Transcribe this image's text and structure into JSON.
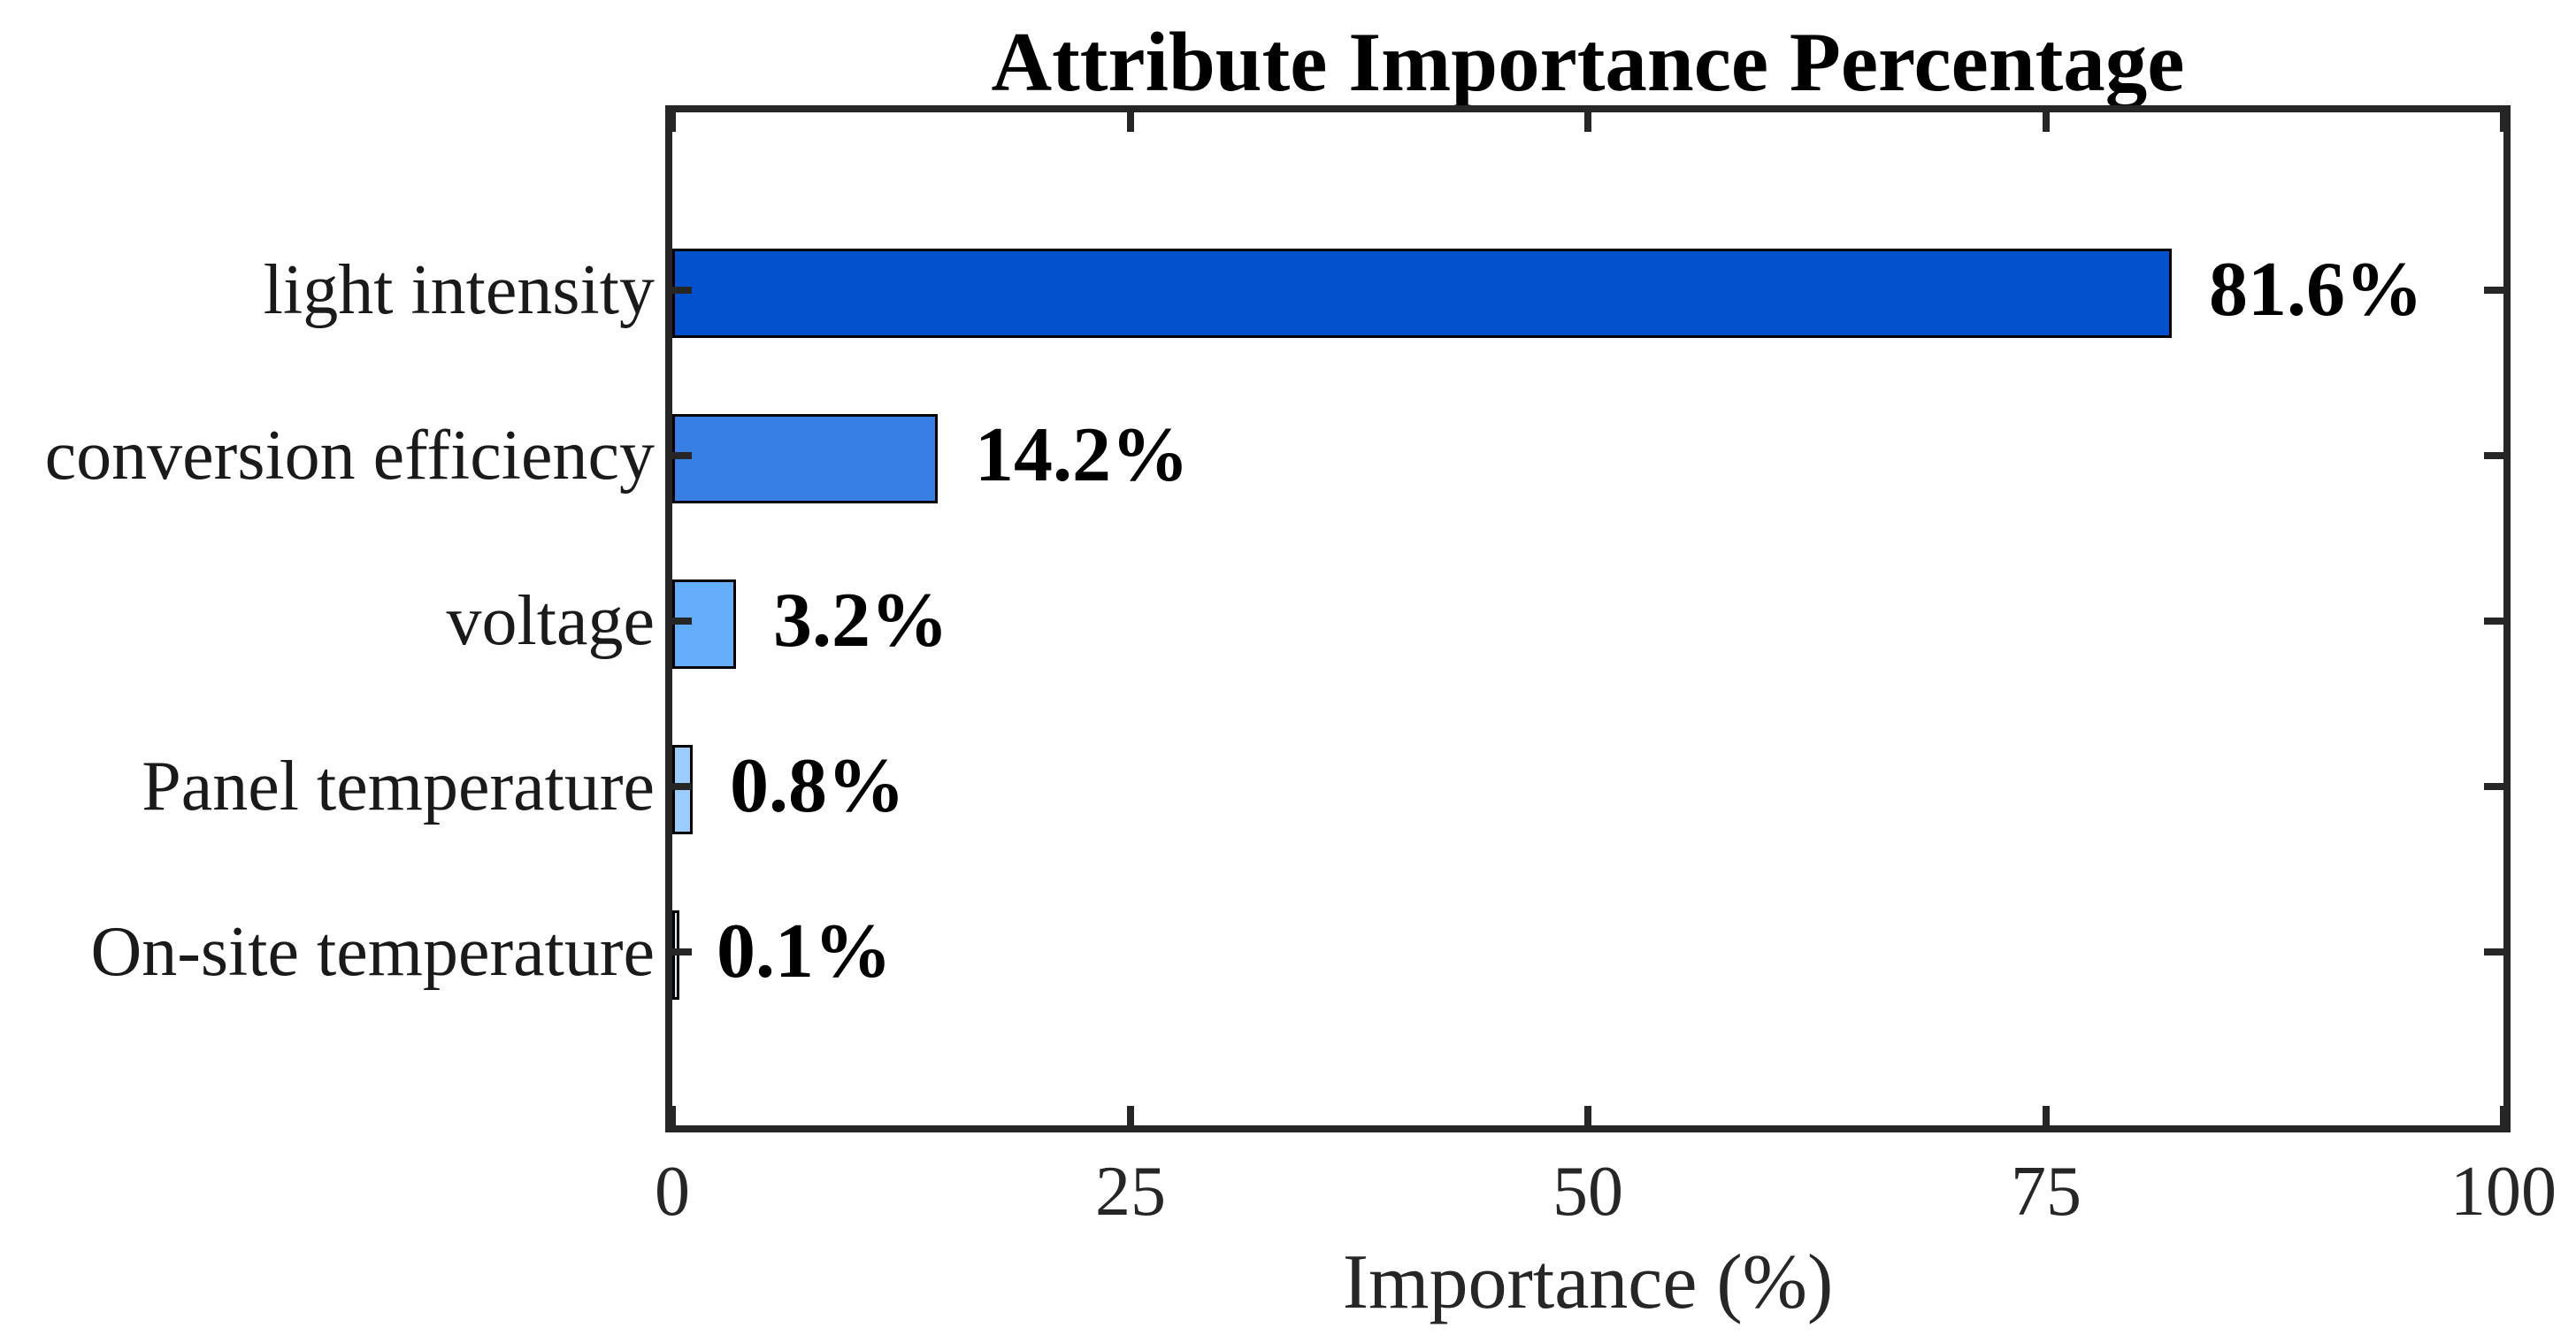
{
  "figure": {
    "background_color": "#ffffff"
  },
  "chart_data": {
    "type": "bar",
    "orientation": "horizontal",
    "title": "Attribute Importance Percentage",
    "xlabel": "Importance (%)",
    "ylabel": "",
    "categories": [
      "light intensity",
      "conversion efficiency",
      "voltage",
      "Panel temperature",
      "On-site temperature"
    ],
    "values": [
      81.6,
      14.2,
      3.2,
      0.8,
      0.1
    ],
    "value_labels": [
      "81.6%",
      "14.2%",
      "3.2%",
      "0.8%",
      "0.1%"
    ],
    "bar_colors": [
      "#0451CD",
      "#377FE3",
      "#64ADFA",
      "#9CCCFE",
      "#D9EBFD"
    ],
    "bar_edge_color": "#000000",
    "xlim": [
      0,
      100
    ],
    "xticks": [
      0,
      25,
      50,
      75,
      100
    ],
    "xtick_labels": [
      "0",
      "25",
      "50",
      "75",
      "100"
    ],
    "grid": false,
    "legend": false,
    "box": true,
    "tick_direction": "in",
    "axis_color": "#262626",
    "tick_label_color": "#262626",
    "title_color": "#000000",
    "value_label_color": "#000000"
  }
}
